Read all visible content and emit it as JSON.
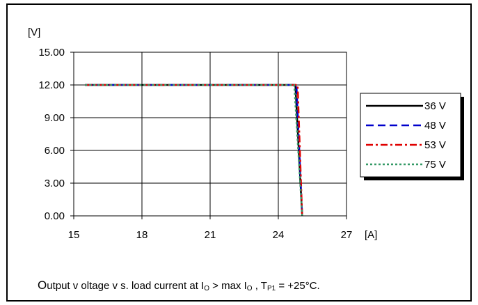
{
  "chart_data": {
    "type": "line",
    "title": "",
    "ylabel": "[V]",
    "xlabel": "[A]",
    "xlim": [
      15,
      27
    ],
    "ylim": [
      0,
      15
    ],
    "x_ticks": [
      "15",
      "18",
      "21",
      "24",
      "27"
    ],
    "y_ticks": [
      "0.00",
      "3.00",
      "6.00",
      "9.00",
      "12.00",
      "15.00"
    ],
    "grid": true,
    "legend_position": "right",
    "series": [
      {
        "name": "36 V",
        "color": "#000000",
        "dash": "solid",
        "points": [
          [
            15.5,
            12.0
          ],
          [
            24.75,
            12.0
          ],
          [
            25.05,
            0.0
          ]
        ]
      },
      {
        "name": "48 V",
        "color": "#0000cc",
        "dash": "dash",
        "points": [
          [
            15.5,
            12.0
          ],
          [
            24.8,
            12.0
          ],
          [
            25.05,
            0.0
          ]
        ]
      },
      {
        "name": "53 V",
        "color": "#e00000",
        "dash": "dashdot",
        "points": [
          [
            15.5,
            12.0
          ],
          [
            24.85,
            12.0
          ],
          [
            25.05,
            0.0
          ]
        ]
      },
      {
        "name": "75 V",
        "color": "#339966",
        "dash": "dot",
        "points": [
          [
            15.5,
            12.0
          ],
          [
            24.7,
            12.0
          ],
          [
            25.05,
            0.0
          ]
        ]
      }
    ]
  },
  "caption": {
    "lead_letter": "O",
    "text_a": "utput v oltage v s. load current at I",
    "sub_o1": "O",
    "text_b": " > max I",
    "sub_o2": "O",
    "text_c": " , T",
    "sub_p1": "P1",
    "text_d": " = +25°C."
  }
}
